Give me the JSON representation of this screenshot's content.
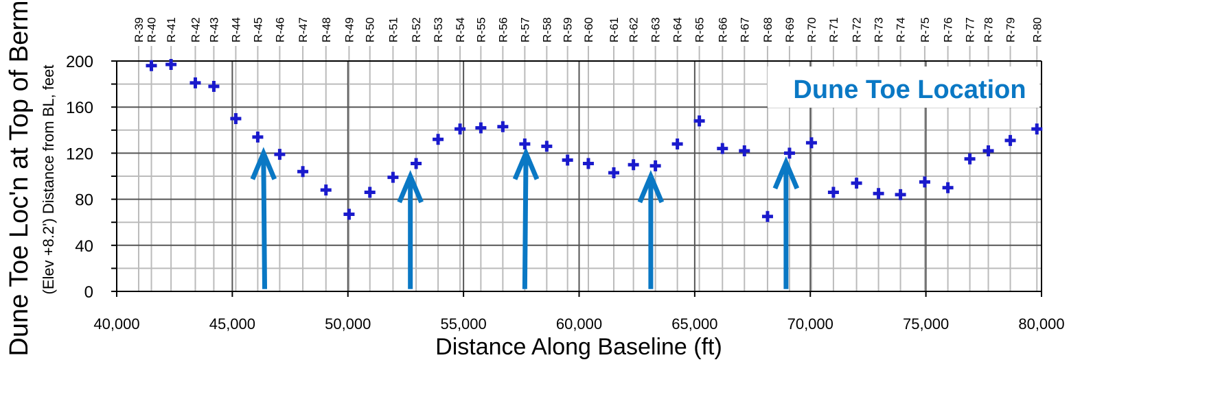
{
  "chart_data": {
    "type": "scatter",
    "xlabel": "Distance Along Baseline (ft)",
    "ylabel": "Dune Toe Loc'n at Top of Berm",
    "ylabel_sub": "(Elev +8.2')  Distance from BL, feet",
    "annotation": "Dune Toe Location",
    "xlim": [
      40000,
      80000
    ],
    "ylim": [
      0,
      200
    ],
    "x_ticks": [
      40000,
      45000,
      50000,
      55000,
      60000,
      65000,
      70000,
      75000,
      80000
    ],
    "x_tick_labels": [
      "40,000",
      "45,000",
      "50,000",
      "55,000",
      "60,000",
      "65,000",
      "70,000",
      "75,000",
      "80,000"
    ],
    "y_ticks": [
      0,
      40,
      80,
      120,
      160,
      200
    ],
    "y_tick_labels": [
      "0",
      "40",
      "80",
      "120",
      "160",
      "200"
    ],
    "grid": true,
    "marker": "plus",
    "colors": {
      "marker": "#1a1acc",
      "arrow": "#0a78c4",
      "annotation": "#0a78c4",
      "major_grid": "#555555",
      "minor_grid": "#bbbbbb"
    },
    "monuments": [
      {
        "label": "R-39",
        "x": 40950
      },
      {
        "label": "R-40",
        "x": 41500
      },
      {
        "label": "R-41",
        "x": 42350
      },
      {
        "label": "R-42",
        "x": 43400
      },
      {
        "label": "R-43",
        "x": 44200
      },
      {
        "label": "R-44",
        "x": 45150
      },
      {
        "label": "R-45",
        "x": 46100
      },
      {
        "label": "R-46",
        "x": 47050
      },
      {
        "label": "R-47",
        "x": 48050
      },
      {
        "label": "R-48",
        "x": 49050
      },
      {
        "label": "R-49",
        "x": 50050
      },
      {
        "label": "R-50",
        "x": 50950
      },
      {
        "label": "R-51",
        "x": 51950
      },
      {
        "label": "R-52",
        "x": 52950
      },
      {
        "label": "R-53",
        "x": 53900
      },
      {
        "label": "R-54",
        "x": 54850
      },
      {
        "label": "R-55",
        "x": 55750
      },
      {
        "label": "R-56",
        "x": 56700
      },
      {
        "label": "R-57",
        "x": 57650
      },
      {
        "label": "R-58",
        "x": 58600
      },
      {
        "label": "R-59",
        "x": 59500
      },
      {
        "label": "R-60",
        "x": 60400
      },
      {
        "label": "R-61",
        "x": 61500
      },
      {
        "label": "R-62",
        "x": 62350
      },
      {
        "label": "R-63",
        "x": 63300
      },
      {
        "label": "R-64",
        "x": 64250
      },
      {
        "label": "R-65",
        "x": 65200
      },
      {
        "label": "R-66",
        "x": 66200
      },
      {
        "label": "R-67",
        "x": 67150
      },
      {
        "label": "R-68",
        "x": 68150
      },
      {
        "label": "R-69",
        "x": 69100
      },
      {
        "label": "R-70",
        "x": 70050
      },
      {
        "label": "R-71",
        "x": 71000
      },
      {
        "label": "R-72",
        "x": 72000
      },
      {
        "label": "R-73",
        "x": 72950
      },
      {
        "label": "R-74",
        "x": 73900
      },
      {
        "label": "R-75",
        "x": 74950
      },
      {
        "label": "R-76",
        "x": 75950
      },
      {
        "label": "R-77",
        "x": 76900
      },
      {
        "label": "R-78",
        "x": 77700
      },
      {
        "label": "R-79",
        "x": 78650
      },
      {
        "label": "R-80",
        "x": 79800
      }
    ],
    "points": [
      {
        "x": 41500,
        "y": 196
      },
      {
        "x": 42350,
        "y": 197
      },
      {
        "x": 43400,
        "y": 181
      },
      {
        "x": 44200,
        "y": 178
      },
      {
        "x": 45150,
        "y": 150
      },
      {
        "x": 46100,
        "y": 134
      },
      {
        "x": 47050,
        "y": 119
      },
      {
        "x": 48050,
        "y": 104
      },
      {
        "x": 49050,
        "y": 88
      },
      {
        "x": 50050,
        "y": 67
      },
      {
        "x": 50950,
        "y": 86
      },
      {
        "x": 51950,
        "y": 99
      },
      {
        "x": 52950,
        "y": 111
      },
      {
        "x": 53900,
        "y": 132
      },
      {
        "x": 54850,
        "y": 141
      },
      {
        "x": 55750,
        "y": 142
      },
      {
        "x": 56700,
        "y": 143
      },
      {
        "x": 57650,
        "y": 128
      },
      {
        "x": 58600,
        "y": 126
      },
      {
        "x": 59500,
        "y": 114
      },
      {
        "x": 60400,
        "y": 111
      },
      {
        "x": 61500,
        "y": 103
      },
      {
        "x": 62350,
        "y": 110
      },
      {
        "x": 63300,
        "y": 109
      },
      {
        "x": 64250,
        "y": 128
      },
      {
        "x": 65200,
        "y": 148
      },
      {
        "x": 66200,
        "y": 124
      },
      {
        "x": 67150,
        "y": 122
      },
      {
        "x": 68150,
        "y": 65
      },
      {
        "x": 69100,
        "y": 120
      },
      {
        "x": 70050,
        "y": 129
      },
      {
        "x": 71000,
        "y": 86
      },
      {
        "x": 72000,
        "y": 94
      },
      {
        "x": 72950,
        "y": 85
      },
      {
        "x": 73900,
        "y": 84
      },
      {
        "x": 74950,
        "y": 95
      },
      {
        "x": 75950,
        "y": 90
      },
      {
        "x": 76900,
        "y": 115
      },
      {
        "x": 77700,
        "y": 122
      },
      {
        "x": 78650,
        "y": 131
      },
      {
        "x": 79800,
        "y": 141
      }
    ],
    "arrows": [
      {
        "x_start": 46400,
        "y_start": 2,
        "x_end": 46350,
        "y_end": 120
      },
      {
        "x_start": 52700,
        "y_start": 2,
        "x_end": 52700,
        "y_end": 100
      },
      {
        "x_start": 57650,
        "y_start": 2,
        "x_end": 57700,
        "y_end": 120
      },
      {
        "x_start": 63100,
        "y_start": 2,
        "x_end": 63100,
        "y_end": 100
      },
      {
        "x_start": 68950,
        "y_start": 2,
        "x_end": 68950,
        "y_end": 112
      }
    ]
  }
}
